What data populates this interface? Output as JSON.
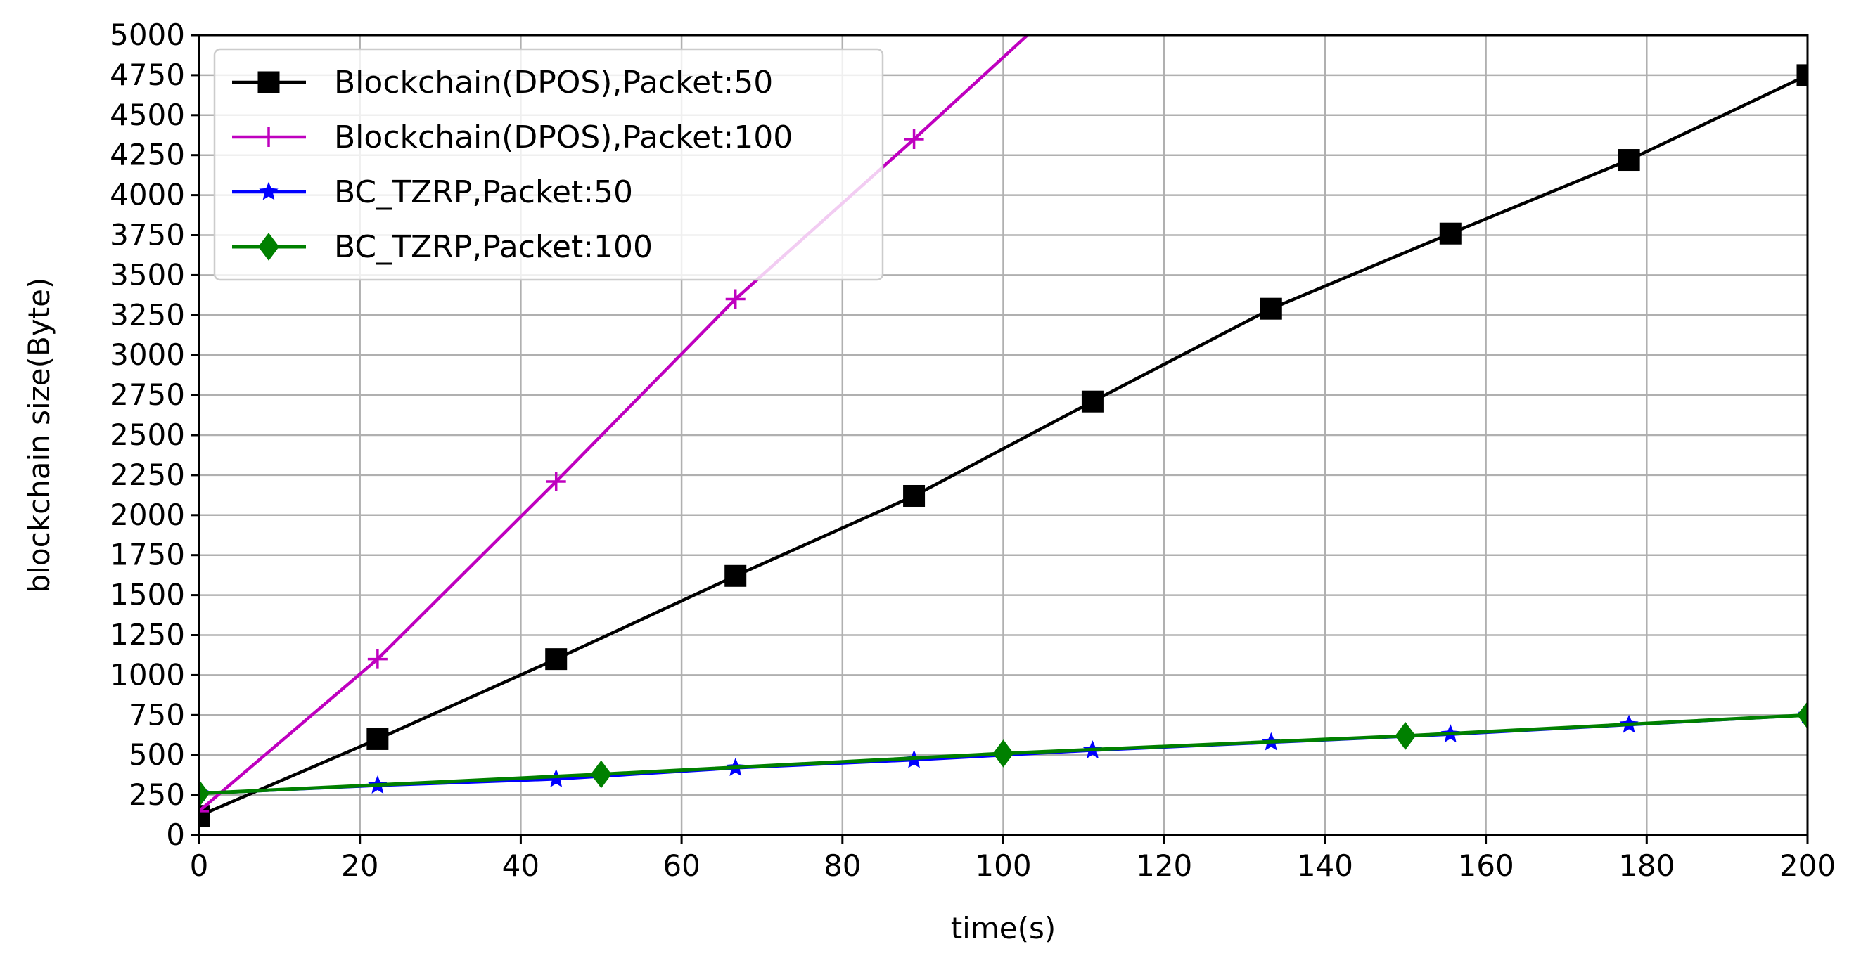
{
  "chart_data": {
    "type": "line",
    "title": "",
    "xlabel": "time(s)",
    "ylabel": "blockchain size(Byte)",
    "xlim": [
      0,
      200
    ],
    "ylim": [
      0,
      5000
    ],
    "xticks": [
      0,
      20,
      40,
      60,
      80,
      100,
      120,
      140,
      160,
      180,
      200
    ],
    "yticks": [
      0,
      250,
      500,
      750,
      1000,
      1250,
      1500,
      1750,
      2000,
      2250,
      2500,
      2750,
      3000,
      3250,
      3500,
      3750,
      4000,
      4250,
      4500,
      4750,
      5000
    ],
    "xtick_labels": [
      "0",
      "20",
      "40",
      "60",
      "80",
      "100",
      "120",
      "140",
      "160",
      "180",
      "200"
    ],
    "ytick_labels": [
      "0",
      "250",
      "500",
      "750",
      "1000",
      "1250",
      "1500",
      "1750",
      "2000",
      "2250",
      "2500",
      "2750",
      "3000",
      "3250",
      "3500",
      "3750",
      "4000",
      "4250",
      "4500",
      "4750",
      "5000"
    ],
    "grid": true,
    "legend_position": "top-left",
    "series": [
      {
        "name": "Blockchain(DPOS),Packet:50",
        "color": "#000000",
        "marker": "square",
        "x": [
          0,
          22.2,
          44.4,
          66.7,
          88.9,
          111.1,
          133.3,
          155.6,
          177.8,
          200
        ],
        "values": [
          120,
          600,
          1100,
          1620,
          2120,
          2710,
          3290,
          3760,
          4220,
          4750
        ]
      },
      {
        "name": "Blockchain(DPOS),Packet:100",
        "color": "#bf00bf",
        "marker": "plus",
        "x": [
          0,
          22.2,
          44.4,
          66.7,
          88.9,
          103
        ],
        "values": [
          150,
          1100,
          2210,
          3350,
          4350,
          5000
        ]
      },
      {
        "name": "BC_TZRP,Packet:50",
        "color": "#0000ff",
        "marker": "star",
        "x": [
          0,
          22.2,
          44.4,
          66.7,
          88.9,
          111.1,
          133.3,
          155.6,
          177.8,
          200
        ],
        "values": [
          260,
          310,
          350,
          420,
          470,
          530,
          580,
          630,
          690,
          750
        ]
      },
      {
        "name": "BC_TZRP,Packet:100",
        "color": "#008000",
        "marker": "diamond",
        "x": [
          0,
          50,
          100,
          150,
          200
        ],
        "values": [
          260,
          380,
          510,
          620,
          750
        ]
      }
    ]
  }
}
